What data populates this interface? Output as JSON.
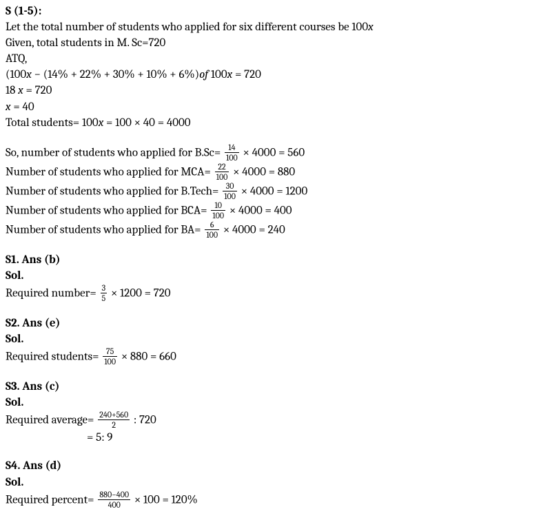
{
  "intro": {
    "heading": "S (1-5):",
    "line1_a": "Let the total number of students who applied for six different courses be 100",
    "line1_var": "x",
    "line2": "Given, total students in M. Sc=720",
    "line3": "ATQ,",
    "eq1_a": " (100",
    "eq1_var1": "x",
    "eq1_b": " − (14% + 22% + 30% + 10% + 6%)",
    "eq1_of": "of",
    "eq1_c": " 100",
    "eq1_var2": "x",
    "eq1_d": " = 720",
    "eq2_a": " 18 ",
    "eq2_var": "x",
    "eq2_b": " = 720",
    "eq3_a": " ",
    "eq3_var": "x",
    "eq3_b": " = 40",
    "total_a": "Total students= 100",
    "total_var": "x",
    "total_b": " = 100 × 40 = 4000",
    "bsc_a": "So, number of students who applied for B.Sc= ",
    "bsc_num": "14",
    "bsc_den": "100",
    "bsc_b": " × 4000 = 560",
    "mca_a": "Number of students who applied for MCA= ",
    "mca_num": "22",
    "mca_den": "100",
    "mca_b": " × 4000 = 880",
    "btech_a": "Number of students who applied for B.Tech= ",
    "btech_num": "30",
    "btech_den": "100",
    "btech_b": " × 4000 = 1200",
    "bca_a": "Number of students who applied for BCA= ",
    "bca_num": "10",
    "bca_den": "100",
    "bca_b": " × 4000 = 400",
    "ba_a": "Number of students who applied for BA= ",
    "ba_num": "6",
    "ba_den": "100",
    "ba_b": " × 4000 = 240"
  },
  "s1": {
    "heading": "S1. Ans (b)",
    "sol": "Sol.",
    "req_a": "Required number= ",
    "req_num": "3",
    "req_den": "5",
    "req_b": " × 1200 = 720"
  },
  "s2": {
    "heading": "S2. Ans (e)",
    "sol": "Sol.",
    "req_a": "Required students= ",
    "req_num": "75",
    "req_den": "100",
    "req_b": " × 880 = 660"
  },
  "s3": {
    "heading": "S3. Ans (c)",
    "sol": "Sol.",
    "req_a": "Required average= ",
    "req_num": "240+560",
    "req_den": "2",
    "req_b": " : 720",
    "req2": "= 5: 9"
  },
  "s4": {
    "heading": "S4. Ans (d)",
    "sol": "Sol.",
    "req_a": "Required percent= ",
    "req_num": "880−400",
    "req_den": "400",
    "req_b": " × 100 = 120%"
  }
}
